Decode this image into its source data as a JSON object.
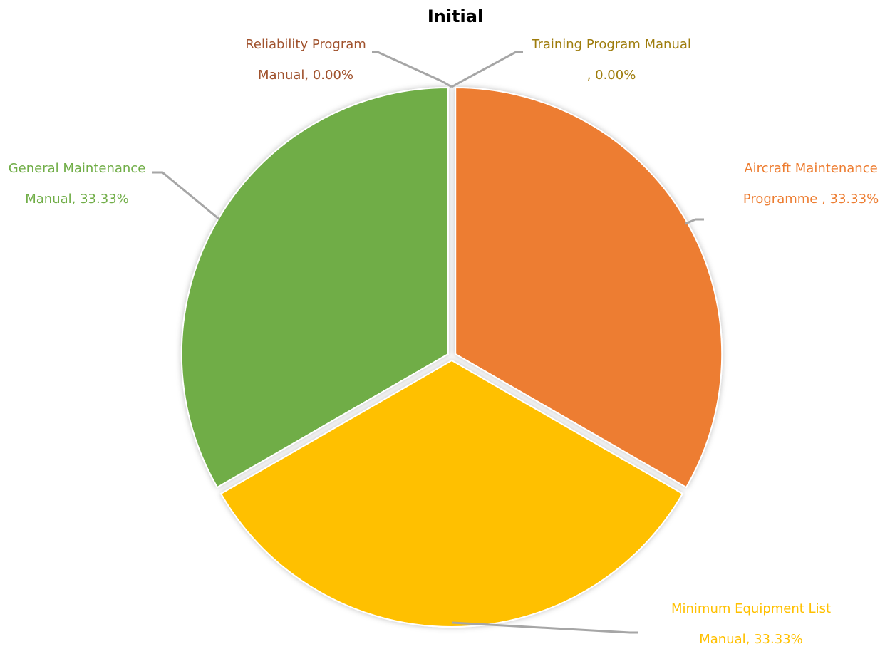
{
  "chart_data": {
    "type": "pie",
    "title": "Initial",
    "slices": [
      {
        "name": "Reliability Program Manual",
        "value": 0,
        "percent_label": "0.00%",
        "color": "#a0522d",
        "label_lines": [
          "Reliability Program",
          "Manual, 0.00%"
        ]
      },
      {
        "name": "Training Program Manual",
        "value": 0,
        "percent_label": "0.00%",
        "color": "#9e7c0c",
        "label_lines": [
          "Training Program Manual",
          ", 0.00%"
        ]
      },
      {
        "name": "Aircraft Maintenance Programme",
        "value": 33.33,
        "percent_label": "33.33%",
        "color": "#ed7d31",
        "label_lines": [
          "Aircraft Maintenance",
          "Programme , 33.33%"
        ]
      },
      {
        "name": "Minimum Equipment List Manual",
        "value": 33.33,
        "percent_label": "33.33%",
        "color": "#ffc000",
        "label_lines": [
          "Minimum Equipment List",
          "Manual, 33.33%"
        ]
      },
      {
        "name": "General Maintenance Manual",
        "value": 33.33,
        "percent_label": "33.33%",
        "color": "#70ad47",
        "label_lines": [
          "General Maintenance",
          "Manual, 33.33%"
        ]
      }
    ],
    "legend": "none",
    "data_labels": "outside with leader lines"
  }
}
